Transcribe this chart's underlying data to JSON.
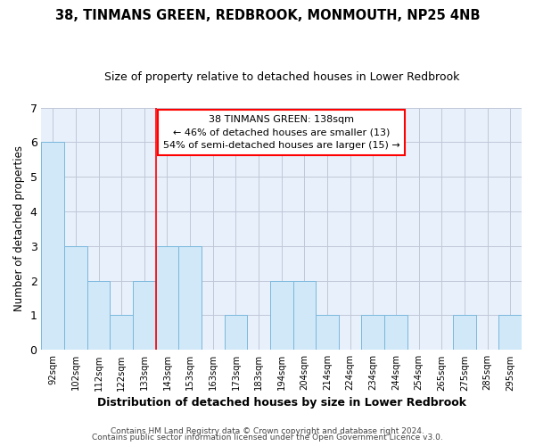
{
  "title": "38, TINMANS GREEN, REDBROOK, MONMOUTH, NP25 4NB",
  "subtitle": "Size of property relative to detached houses in Lower Redbrook",
  "xlabel": "Distribution of detached houses by size in Lower Redbrook",
  "ylabel": "Number of detached properties",
  "categories": [
    "92sqm",
    "102sqm",
    "112sqm",
    "122sqm",
    "133sqm",
    "143sqm",
    "153sqm",
    "163sqm",
    "173sqm",
    "183sqm",
    "194sqm",
    "204sqm",
    "214sqm",
    "224sqm",
    "234sqm",
    "244sqm",
    "254sqm",
    "265sqm",
    "275sqm",
    "285sqm",
    "295sqm"
  ],
  "values": [
    6,
    3,
    2,
    1,
    2,
    3,
    3,
    0,
    1,
    0,
    2,
    2,
    1,
    0,
    1,
    1,
    0,
    0,
    1,
    0,
    1
  ],
  "bar_color": "#d0e8f8",
  "bar_edge_color": "#7ab8dc",
  "red_line_x": 4.5,
  "ylim": [
    0,
    7
  ],
  "yticks": [
    0,
    1,
    2,
    3,
    4,
    5,
    6,
    7
  ],
  "annotation_line1": "38 TINMANS GREEN: 138sqm",
  "annotation_line2": "← 46% of detached houses are smaller (13)",
  "annotation_line3": "54% of semi-detached houses are larger (15) →",
  "footer1": "Contains HM Land Registry data © Crown copyright and database right 2024.",
  "footer2": "Contains public sector information licensed under the Open Government Licence v3.0.",
  "background_color": "#ffffff",
  "plot_bg_color": "#e8f0fb",
  "grid_color": "#c0c8d8"
}
